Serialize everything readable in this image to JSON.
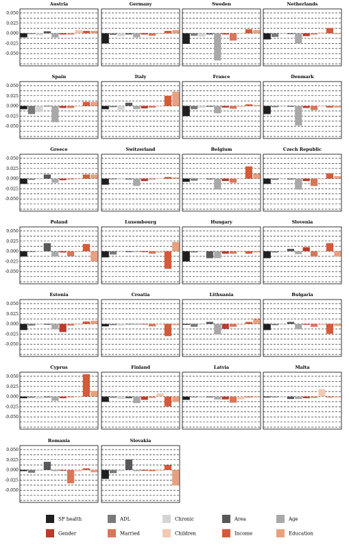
{
  "chart_data": {
    "type": "bar",
    "ylim": [
      -0.08,
      0.06
    ],
    "yticks": [
      "0.050",
      "0.025",
      "0.000",
      "-0.025",
      "-0.050"
    ],
    "ytick_values": [
      0.05,
      0.025,
      0.0,
      -0.025,
      -0.05
    ],
    "grid": true,
    "legend_position": "bottom",
    "series": [
      {
        "name": "SP health",
        "color": "#1f1f1f"
      },
      {
        "name": "ADL",
        "color": "#7a7a7a"
      },
      {
        "name": "Chronic",
        "color": "#d4d4d4"
      },
      {
        "name": "Area",
        "color": "#585858"
      },
      {
        "name": "Age",
        "color": "#a9a9a9"
      },
      {
        "name": "Gender",
        "color": "#c0392b"
      },
      {
        "name": "Married",
        "color": "#d9765a"
      },
      {
        "name": "Children",
        "color": "#f2c9b3"
      },
      {
        "name": "Income",
        "color": "#d55a3a"
      },
      {
        "name": "Education",
        "color": "#e9a07f"
      }
    ],
    "panels": [
      {
        "country": "Austria",
        "values": [
          -0.01,
          -0.002,
          -0.005,
          0.005,
          -0.01,
          -0.003,
          -0.003,
          0.008,
          0.006,
          0.006
        ]
      },
      {
        "country": "Germany",
        "values": [
          -0.025,
          -0.004,
          -0.007,
          -0.003,
          -0.01,
          -0.003,
          -0.006,
          -0.002,
          0.006,
          0.008
        ]
      },
      {
        "country": "Sweden",
        "values": [
          -0.026,
          -0.006,
          -0.008,
          -0.003,
          -0.067,
          -0.003,
          -0.018,
          0.0,
          0.01,
          0.008
        ]
      },
      {
        "country": "Netherlands",
        "values": [
          -0.015,
          -0.009,
          -0.002,
          -0.002,
          -0.025,
          -0.007,
          -0.003,
          0.002,
          0.013,
          -0.002
        ]
      },
      {
        "country": "Spain",
        "values": [
          -0.008,
          -0.02,
          -0.015,
          -0.001,
          -0.04,
          -0.005,
          -0.005,
          0.0,
          0.01,
          0.01
        ]
      },
      {
        "country": "Italy",
        "values": [
          -0.008,
          -0.003,
          -0.01,
          0.008,
          -0.008,
          -0.006,
          -0.004,
          0.0,
          0.025,
          0.035
        ]
      },
      {
        "country": "France",
        "values": [
          -0.025,
          -0.008,
          -0.004,
          -0.002,
          -0.018,
          -0.004,
          -0.007,
          -0.003,
          0.004,
          0.002
        ]
      },
      {
        "country": "Denmark",
        "values": [
          -0.02,
          -0.003,
          -0.002,
          -0.002,
          -0.048,
          -0.005,
          -0.01,
          -0.001,
          -0.004,
          -0.004
        ]
      },
      {
        "country": "Greece",
        "values": [
          -0.013,
          -0.003,
          -0.002,
          0.01,
          -0.01,
          -0.004,
          -0.002,
          -0.002,
          0.01,
          0.01
        ]
      },
      {
        "country": "Switzerland",
        "values": [
          -0.015,
          -0.002,
          -0.002,
          -0.002,
          -0.018,
          -0.006,
          -0.002,
          0.001,
          0.004,
          0.003
        ]
      },
      {
        "country": "Belgium",
        "values": [
          -0.008,
          -0.005,
          -0.002,
          -0.002,
          -0.027,
          -0.006,
          -0.01,
          -0.001,
          0.03,
          0.012
        ]
      },
      {
        "country": "Czech Republic",
        "values": [
          -0.013,
          -0.003,
          -0.002,
          -0.002,
          -0.027,
          -0.006,
          -0.018,
          -0.002,
          0.013,
          0.006
        ]
      },
      {
        "country": "Poland",
        "values": [
          -0.013,
          -0.002,
          -0.002,
          0.02,
          -0.013,
          -0.003,
          -0.012,
          -0.002,
          0.018,
          -0.025
        ]
      },
      {
        "country": "Luxembourg",
        "values": [
          -0.015,
          -0.008,
          -0.002,
          -0.002,
          -0.002,
          -0.002,
          -0.006,
          -0.004,
          -0.043,
          0.023
        ]
      },
      {
        "country": "Hungary",
        "values": [
          -0.025,
          -0.003,
          -0.002,
          -0.017,
          -0.017,
          -0.006,
          -0.006,
          -0.002,
          -0.006,
          -0.003
        ]
      },
      {
        "country": "Slovenia",
        "values": [
          -0.017,
          -0.003,
          -0.002,
          0.006,
          -0.007,
          0.01,
          -0.013,
          0.0,
          0.02,
          -0.013
        ]
      },
      {
        "country": "Estonia",
        "values": [
          -0.015,
          -0.004,
          -0.002,
          -0.002,
          -0.013,
          -0.02,
          -0.004,
          -0.002,
          0.006,
          0.008
        ]
      },
      {
        "country": "Croatia",
        "values": [
          -0.006,
          -0.003,
          -0.004,
          -0.001,
          -0.002,
          -0.001,
          -0.006,
          -0.002,
          -0.03,
          -0.003
        ]
      },
      {
        "country": "Lithuania",
        "values": [
          -0.002,
          -0.007,
          -0.002,
          0.005,
          -0.026,
          -0.012,
          -0.007,
          -0.002,
          0.005,
          0.012
        ]
      },
      {
        "country": "Bulgaria",
        "values": [
          -0.015,
          -0.003,
          -0.002,
          0.005,
          -0.013,
          -0.002,
          -0.007,
          -0.003,
          -0.024,
          -0.005
        ]
      },
      {
        "country": "Cyprus",
        "values": [
          -0.004,
          -0.003,
          -0.005,
          -0.002,
          -0.01,
          -0.004,
          -0.002,
          -0.002,
          0.055,
          0.014
        ]
      },
      {
        "country": "Finland",
        "values": [
          -0.013,
          -0.003,
          -0.006,
          -0.004,
          -0.016,
          -0.008,
          -0.003,
          0.008,
          -0.024,
          -0.013
        ]
      },
      {
        "country": "Latvia",
        "values": [
          -0.008,
          -0.002,
          -0.003,
          -0.002,
          -0.007,
          -0.007,
          -0.015,
          -0.007,
          -0.002,
          -0.002
        ]
      },
      {
        "country": "Malta",
        "values": [
          -0.002,
          -0.002,
          -0.002,
          -0.006,
          -0.006,
          -0.004,
          -0.003,
          0.018,
          -0.002,
          -0.002
        ]
      },
      {
        "country": "Romania",
        "values": [
          -0.003,
          -0.007,
          -0.002,
          0.02,
          -0.003,
          -0.002,
          -0.033,
          -0.004,
          0.004,
          -0.006
        ]
      },
      {
        "country": "Slovakia",
        "values": [
          -0.022,
          -0.008,
          -0.003,
          0.026,
          -0.003,
          -0.002,
          -0.003,
          -0.002,
          0.012,
          -0.038
        ]
      }
    ]
  }
}
